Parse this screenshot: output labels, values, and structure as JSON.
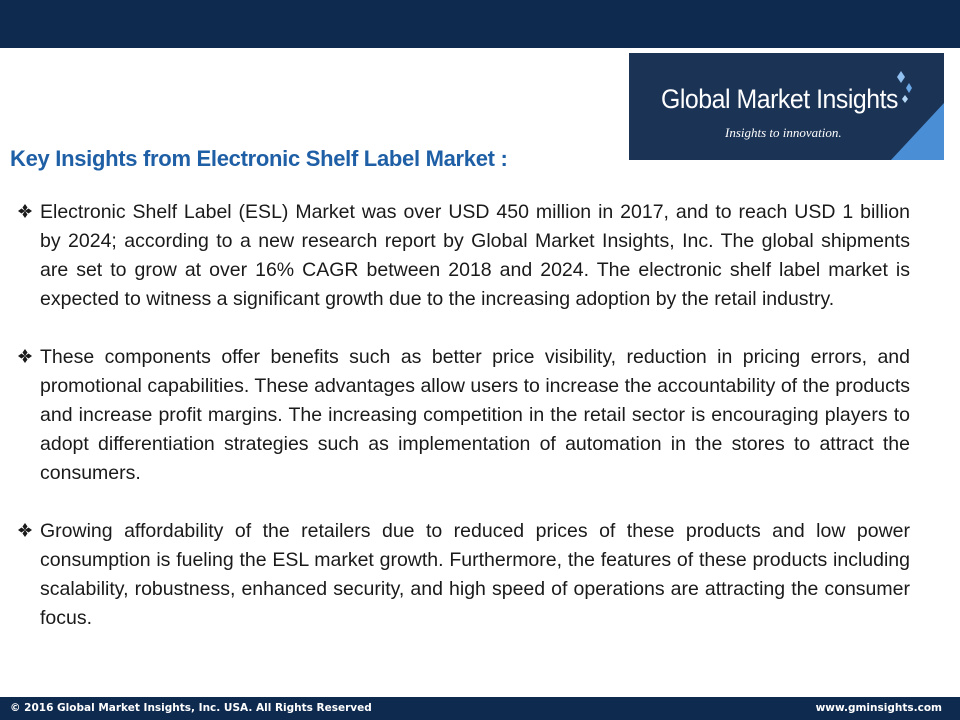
{
  "logo": {
    "title": "Global Market Insights",
    "tagline": "Insights to innovation."
  },
  "heading": "Key Insights from Electronic Shelf Label Market :",
  "bullet_icon": "four-diamond-bullet-icon",
  "bullets": [
    "Electronic Shelf Label (ESL) Market was over USD 450 million in 2017, and to reach USD 1 billion by 2024; according to a new research report by Global Market Insights, Inc. The global shipments are set to grow at over 16% CAGR between 2018 and 2024.  The electronic shelf label market is expected to witness a significant growth due to the increasing adoption by the retail industry.",
    "These components offer benefits such as better price visibility, reduction in pricing errors, and promotional capabilities. These advantages allow users to increase the accountability of the products and increase profit margins. The increasing competition in the retail sector is encouraging players to adopt differentiation strategies such as implementation of automation in the stores to attract the consumers.",
    "Growing affordability of the retailers due to reduced prices of these products and low power consumption is fueling the ESL market growth. Furthermore, the features of these products including scalability, robustness, enhanced security, and high speed of operations are attracting the consumer focus."
  ],
  "footer": {
    "copyright": "© 2016 Global Market Insights, Inc. USA.  All Rights Reserved",
    "website": "www.gminsights.com"
  },
  "colors": {
    "bar": "#0f2a4f",
    "heading": "#1f5fa6",
    "logo_bg": "#1b3355"
  }
}
